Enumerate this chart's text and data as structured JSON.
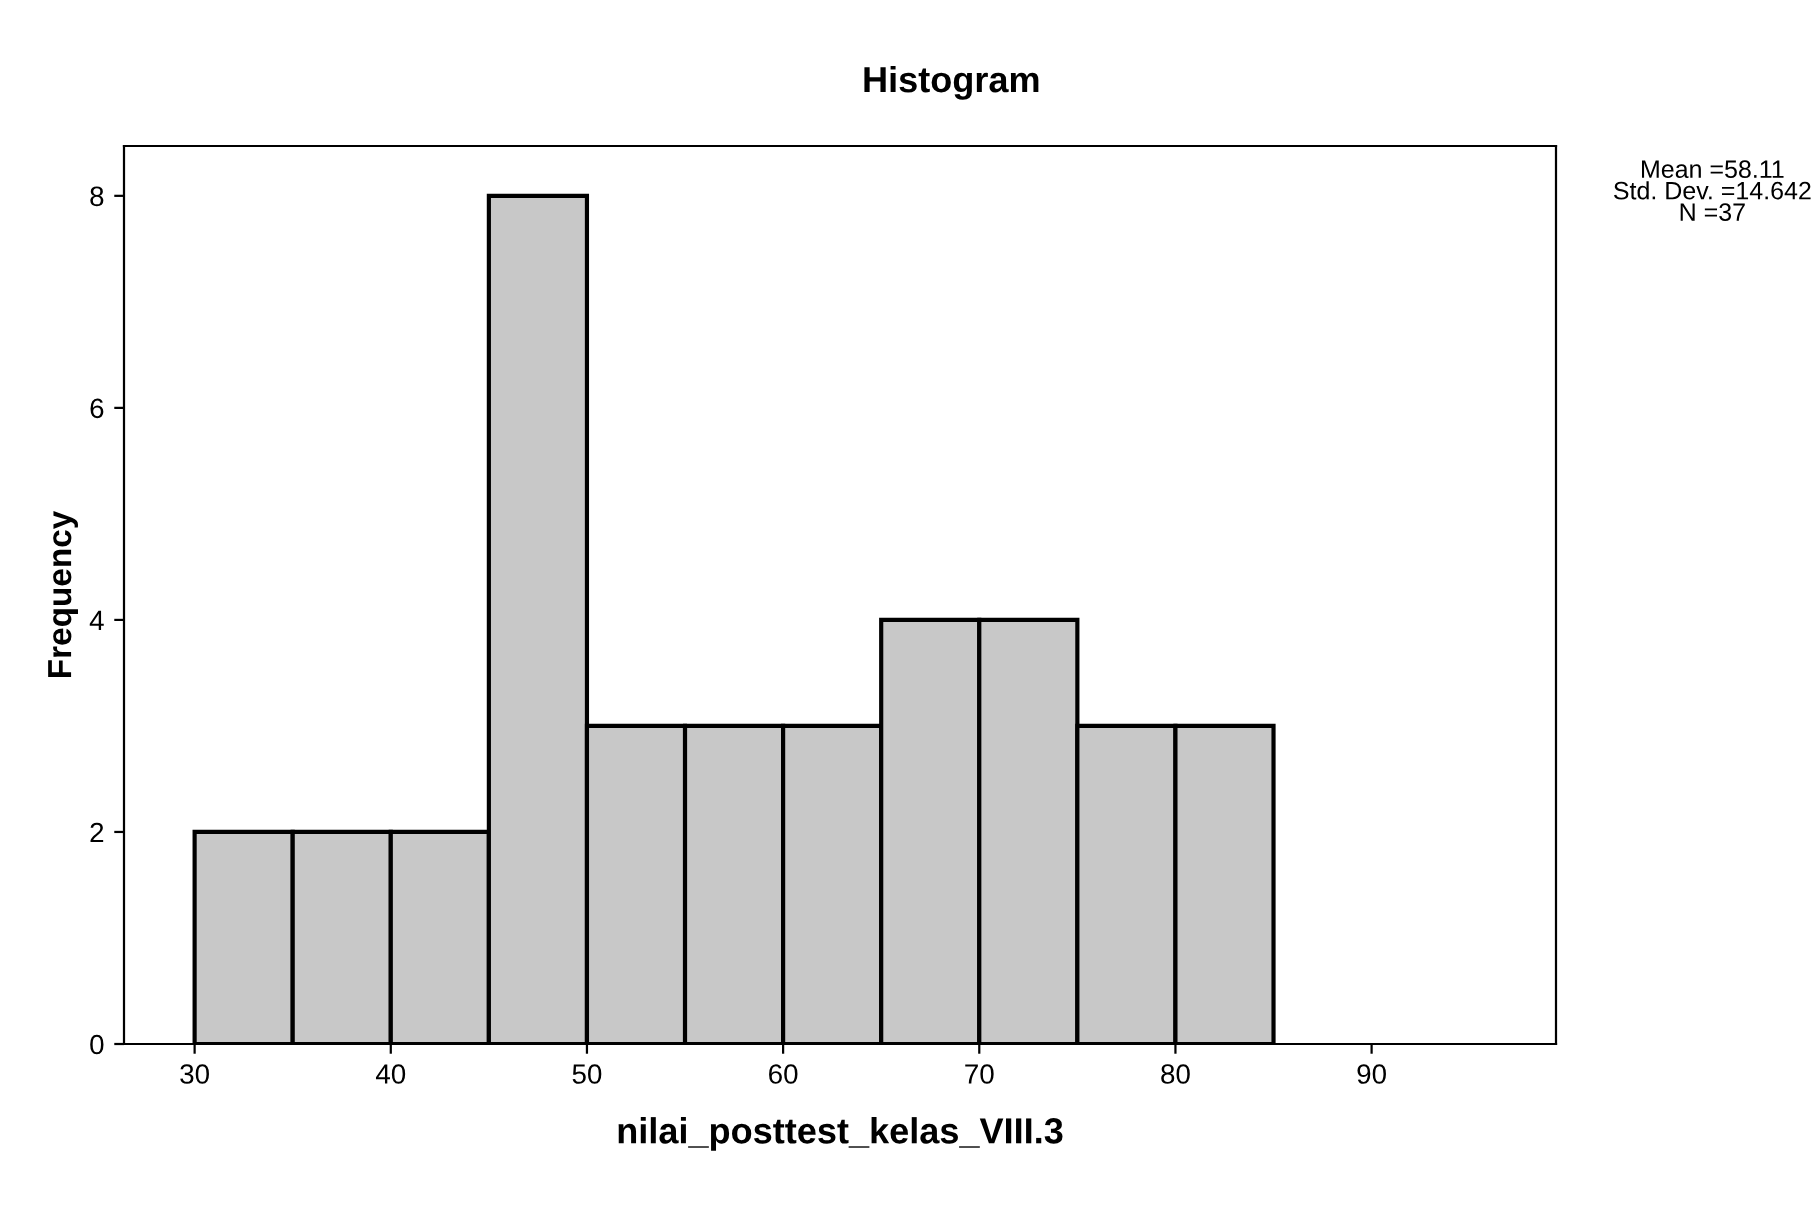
{
  "chart_data": {
    "type": "histogram",
    "title": "Histogram",
    "xlabel": "nilai_posttest_kelas_VIII.3",
    "ylabel": "Frequency",
    "bins": [
      30,
      35,
      40,
      45,
      50,
      55,
      60,
      65,
      70,
      75,
      80,
      85
    ],
    "values": [
      2,
      2,
      2,
      8,
      3,
      3,
      3,
      4,
      4,
      3,
      3
    ],
    "color": "#c8c8c8",
    "xlim": [
      26.4,
      99.4
    ],
    "ylim": [
      0,
      8.47
    ],
    "xticks": [
      30,
      40,
      50,
      60,
      70,
      80,
      90
    ],
    "yticks": [
      0,
      2,
      4,
      6,
      8
    ],
    "annotations": [
      "Mean =58.11\nStd. Dev. =14.642\nN =37"
    ],
    "grid": false,
    "legend": false
  }
}
